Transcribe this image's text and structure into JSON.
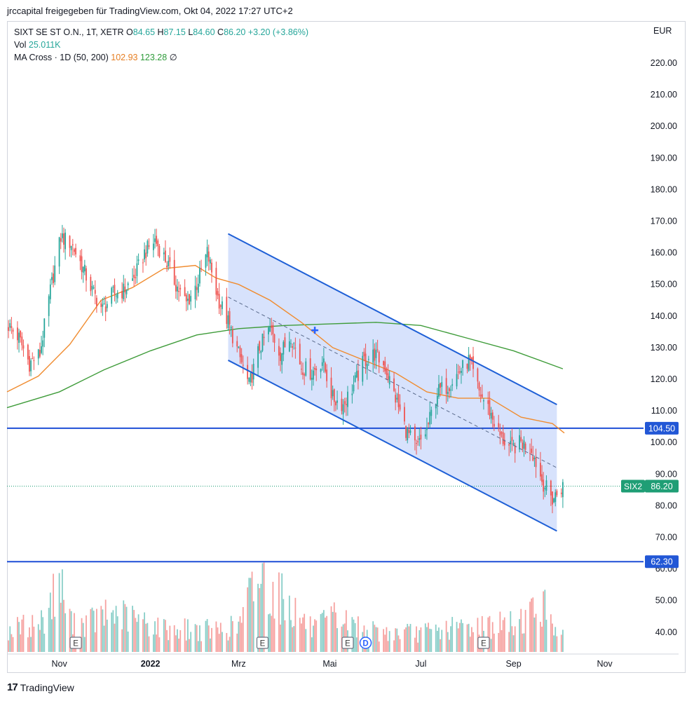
{
  "header": {
    "share_text": "jrccapital freigegeben für TradingView.com, Okt 04, 2022 17:27 UTC+2"
  },
  "legend": {
    "symbol": "SIXT SE ST O.N., 1T, XETR",
    "open_label": "O",
    "open_value": "84.65",
    "high_label": "H",
    "high_value": "87.15",
    "low_label": "L",
    "low_value": "84.60",
    "close_label": "C",
    "close_value": "86.20",
    "change": "+3.20 (+3.86%)",
    "vol_label": "Vol",
    "vol_value": "25.011K",
    "ma_label": "MA Cross · 1D (50, 200)",
    "ma50_value": "102.93",
    "ma200_value": "123.28",
    "ma_extra": "∅"
  },
  "currency": "EUR",
  "footer": {
    "brand_mark": "17",
    "brand": "TradingView"
  },
  "colors": {
    "up": "#26a69a",
    "down": "#ef5350",
    "ma50": "#f08c30",
    "ma200": "#3f9c3a",
    "channel_line": "#1e5fd6",
    "channel_fill": "#c9d8fb",
    "level_line": "#1e4fd6",
    "price_tag": "#1f9e75",
    "level_tag": "#2257d6"
  },
  "chart_data": {
    "type": "candlestick",
    "ylim": [
      35,
      225
    ],
    "y_ticks": [
      "220.00",
      "210.00",
      "200.00",
      "190.00",
      "180.00",
      "170.00",
      "160.00",
      "150.00",
      "140.00",
      "130.00",
      "120.00",
      "110.00",
      "100.00",
      "90.00",
      "80.00",
      "70.00",
      "60.00",
      "50.00",
      "40.00"
    ],
    "x_ticks": [
      {
        "label": "Nov",
        "date": "2021-11-01"
      },
      {
        "label": "2022",
        "date": "2022-01-01"
      },
      {
        "label": "Mrz",
        "date": "2022-03-01"
      },
      {
        "label": "Mai",
        "date": "2022-05-01"
      },
      {
        "label": "Jul",
        "date": "2022-07-01"
      },
      {
        "label": "Sep",
        "date": "2022-09-01"
      },
      {
        "label": "Nov",
        "date": "2022-11-01"
      }
    ],
    "x_range": [
      "2021-09-27",
      "2022-11-27"
    ],
    "price_path": [
      [
        "2021-09-28",
        137
      ],
      [
        "2021-10-05",
        133
      ],
      [
        "2021-10-12",
        125
      ],
      [
        "2021-10-19",
        128
      ],
      [
        "2021-10-26",
        148
      ],
      [
        "2021-11-02",
        165
      ],
      [
        "2021-11-09",
        163
      ],
      [
        "2021-11-16",
        156
      ],
      [
        "2021-11-23",
        148
      ],
      [
        "2021-11-30",
        142
      ],
      [
        "2021-12-07",
        147
      ],
      [
        "2021-12-14",
        148
      ],
      [
        "2021-12-21",
        152
      ],
      [
        "2021-12-28",
        160
      ],
      [
        "2022-01-04",
        164
      ],
      [
        "2022-01-11",
        158
      ],
      [
        "2022-01-18",
        150
      ],
      [
        "2022-01-25",
        144
      ],
      [
        "2022-02-01",
        150
      ],
      [
        "2022-02-08",
        160
      ],
      [
        "2022-02-15",
        146
      ],
      [
        "2022-02-22",
        138
      ],
      [
        "2022-03-01",
        128
      ],
      [
        "2022-03-08",
        118
      ],
      [
        "2022-03-15",
        130
      ],
      [
        "2022-03-22",
        136
      ],
      [
        "2022-03-29",
        128
      ],
      [
        "2022-04-05",
        134
      ],
      [
        "2022-04-12",
        124
      ],
      [
        "2022-04-19",
        122
      ],
      [
        "2022-04-26",
        126
      ],
      [
        "2022-05-03",
        114
      ],
      [
        "2022-05-10",
        112
      ],
      [
        "2022-05-17",
        118
      ],
      [
        "2022-05-24",
        126
      ],
      [
        "2022-05-31",
        128
      ],
      [
        "2022-06-07",
        124
      ],
      [
        "2022-06-14",
        114
      ],
      [
        "2022-06-21",
        104
      ],
      [
        "2022-06-28",
        98
      ],
      [
        "2022-07-05",
        104
      ],
      [
        "2022-07-12",
        116
      ],
      [
        "2022-07-19",
        118
      ],
      [
        "2022-07-26",
        122
      ],
      [
        "2022-08-02",
        126
      ],
      [
        "2022-08-09",
        116
      ],
      [
        "2022-08-16",
        110
      ],
      [
        "2022-08-23",
        102
      ],
      [
        "2022-08-30",
        98
      ],
      [
        "2022-09-06",
        100
      ],
      [
        "2022-09-13",
        98
      ],
      [
        "2022-09-20",
        88
      ],
      [
        "2022-09-27",
        82
      ],
      [
        "2022-10-04",
        86.2
      ]
    ],
    "ma50_path": [
      [
        "2021-09-27",
        116
      ],
      [
        "2021-10-18",
        121
      ],
      [
        "2021-11-08",
        131
      ],
      [
        "2021-11-29",
        145
      ],
      [
        "2021-12-20",
        149
      ],
      [
        "2022-01-10",
        155
      ],
      [
        "2022-01-31",
        156
      ],
      [
        "2022-02-14",
        152
      ],
      [
        "2022-03-01",
        150
      ],
      [
        "2022-03-22",
        145
      ],
      [
        "2022-04-12",
        138
      ],
      [
        "2022-05-03",
        130
      ],
      [
        "2022-05-24",
        126
      ],
      [
        "2022-06-14",
        122
      ],
      [
        "2022-07-05",
        116
      ],
      [
        "2022-07-26",
        114
      ],
      [
        "2022-08-16",
        114
      ],
      [
        "2022-09-06",
        108
      ],
      [
        "2022-09-27",
        106
      ],
      [
        "2022-10-05",
        103
      ]
    ],
    "ma200_path": [
      [
        "2021-09-27",
        111
      ],
      [
        "2021-11-01",
        116
      ],
      [
        "2021-12-01",
        123
      ],
      [
        "2022-01-01",
        129
      ],
      [
        "2022-02-01",
        134
      ],
      [
        "2022-03-01",
        136
      ],
      [
        "2022-04-01",
        137
      ],
      [
        "2022-05-01",
        137.5
      ],
      [
        "2022-06-01",
        138
      ],
      [
        "2022-07-01",
        137
      ],
      [
        "2022-08-01",
        133
      ],
      [
        "2022-09-01",
        129
      ],
      [
        "2022-10-04",
        123.3
      ]
    ],
    "volume_path": [
      [
        "2021-09-27",
        1.0
      ],
      [
        "2021-10-20",
        1.4
      ],
      [
        "2021-11-01",
        3.2
      ],
      [
        "2021-11-10",
        1.2
      ],
      [
        "2021-12-08",
        1.8
      ],
      [
        "2022-01-10",
        1.1
      ],
      [
        "2022-02-14",
        1.0
      ],
      [
        "2022-03-01",
        1.2
      ],
      [
        "2022-03-14",
        3.6
      ],
      [
        "2022-04-01",
        2.4
      ],
      [
        "2022-04-20",
        1.0
      ],
      [
        "2022-05-04",
        1.6
      ],
      [
        "2022-06-01",
        0.9
      ],
      [
        "2022-07-01",
        0.9
      ],
      [
        "2022-08-01",
        1.2
      ],
      [
        "2022-09-01",
        1.3
      ],
      [
        "2022-09-20",
        2.2
      ],
      [
        "2022-10-04",
        0.8
      ]
    ],
    "channel": {
      "upper": [
        [
          "2022-02-22",
          166
        ],
        [
          "2022-09-30",
          112
        ]
      ],
      "lower": [
        [
          "2022-02-22",
          126
        ],
        [
          "2022-09-30",
          72
        ]
      ],
      "mid": [
        [
          "2022-02-22",
          146
        ],
        [
          "2022-09-30",
          92
        ]
      ]
    },
    "levels": [
      {
        "value": 104.5,
        "label": "104.50"
      },
      {
        "value": 62.3,
        "label": "62.30"
      }
    ],
    "last_price": {
      "value": 86.2,
      "symbol": "SIX2",
      "label": "86.20"
    },
    "cross_marker": [
      "2022-04-21",
      135.5
    ],
    "events": [
      {
        "date": "2021-11-12",
        "label": "E"
      },
      {
        "date": "2022-03-17",
        "label": "E"
      },
      {
        "date": "2022-05-13",
        "label": "E"
      },
      {
        "date": "2022-05-25",
        "label": "D"
      },
      {
        "date": "2022-08-12",
        "label": "E"
      }
    ]
  }
}
